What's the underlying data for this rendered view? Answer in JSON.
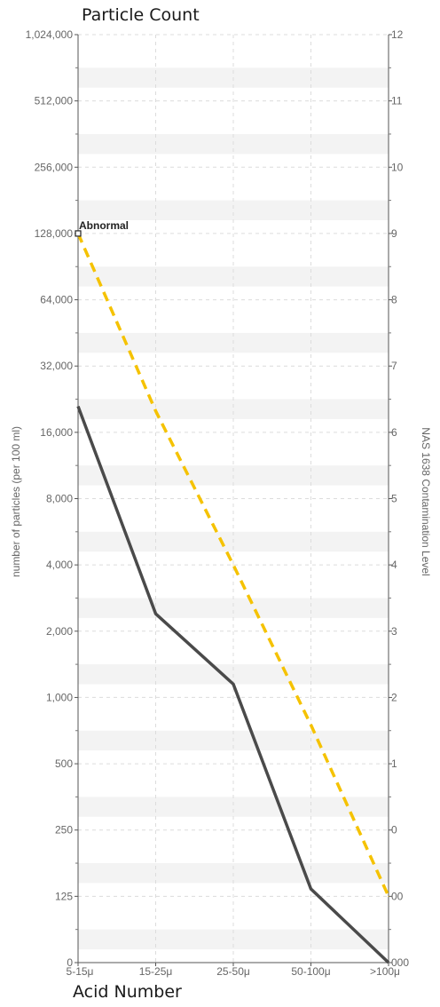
{
  "chart_data": {
    "type": "line",
    "title": "Particle Count",
    "xlabel": "Acid Number",
    "ylabel": "number of particles (per 100 ml)",
    "y2label": "NAS 1638 Contamination Level",
    "categories": [
      "5-15μ",
      "15-25μ",
      "25-50μ",
      "50-100μ",
      ">100μ"
    ],
    "y_tick_labels": [
      "0",
      "125",
      "250",
      "500",
      "1,000",
      "2,000",
      "4,000",
      "8,000",
      "16,000",
      "32,000",
      "64,000",
      "128,000",
      "256,000",
      "512,000",
      "1,024,000"
    ],
    "y2_tick_labels": [
      "000",
      "00",
      "0",
      "1",
      "2",
      "3",
      "4",
      "5",
      "6",
      "7",
      "8",
      "9",
      "10",
      "11",
      "12"
    ],
    "y_scale": "log2",
    "grid": true,
    "series": [
      {
        "values": [
          21000,
          2400,
          1150,
          135,
          0
        ],
        "color": "#4a4a4a",
        "style": "solid"
      },
      {
        "values": [
          128000,
          20000,
          4000,
          750,
          125
        ],
        "color": "#f5c200",
        "style": "dashed"
      }
    ],
    "annotations": [
      {
        "text": "Abnormal",
        "category": "5-15μ",
        "value": 128000
      }
    ]
  }
}
